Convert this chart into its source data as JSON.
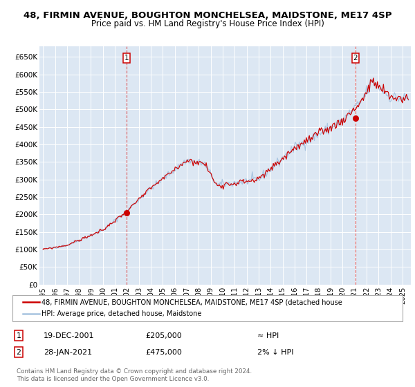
{
  "title_line1": "48, FIRMIN AVENUE, BOUGHTON MONCHELSEA, MAIDSTONE, ME17 4SP",
  "title_line2": "Price paid vs. HM Land Registry's House Price Index (HPI)",
  "ylim": [
    0,
    680000
  ],
  "xlim_start": 1994.7,
  "xlim_end": 2025.7,
  "yticks": [
    0,
    50000,
    100000,
    150000,
    200000,
    250000,
    300000,
    350000,
    400000,
    450000,
    500000,
    550000,
    600000,
    650000
  ],
  "ytick_labels": [
    "£0",
    "£50K",
    "£100K",
    "£150K",
    "£200K",
    "£250K",
    "£300K",
    "£350K",
    "£400K",
    "£450K",
    "£500K",
    "£550K",
    "£600K",
    "£650K"
  ],
  "xtick_years": [
    1995,
    1996,
    1997,
    1998,
    1999,
    2000,
    2001,
    2002,
    2003,
    2004,
    2005,
    2006,
    2007,
    2008,
    2009,
    2010,
    2011,
    2012,
    2013,
    2014,
    2015,
    2016,
    2017,
    2018,
    2019,
    2020,
    2021,
    2022,
    2023,
    2024,
    2025
  ],
  "background_color": "#dce7f3",
  "grid_color": "#ffffff",
  "line_color_hpi": "#a8c4e0",
  "line_color_price": "#cc0000",
  "sale1_x": 2001.97,
  "sale1_y": 205000,
  "sale2_x": 2021.08,
  "sale2_y": 475000,
  "legend_label1": "48, FIRMIN AVENUE, BOUGHTON MONCHELSEA, MAIDSTONE, ME17 4SP (detached house",
  "legend_label2": "HPI: Average price, detached house, Maidstone",
  "note1_date": "19-DEC-2001",
  "note1_price": "£205,000",
  "note1_hpi": "≈ HPI",
  "note2_date": "28-JAN-2021",
  "note2_price": "£475,000",
  "note2_hpi": "2% ↓ HPI",
  "footnote": "Contains HM Land Registry data © Crown copyright and database right 2024.\nThis data is licensed under the Open Government Licence v3.0."
}
